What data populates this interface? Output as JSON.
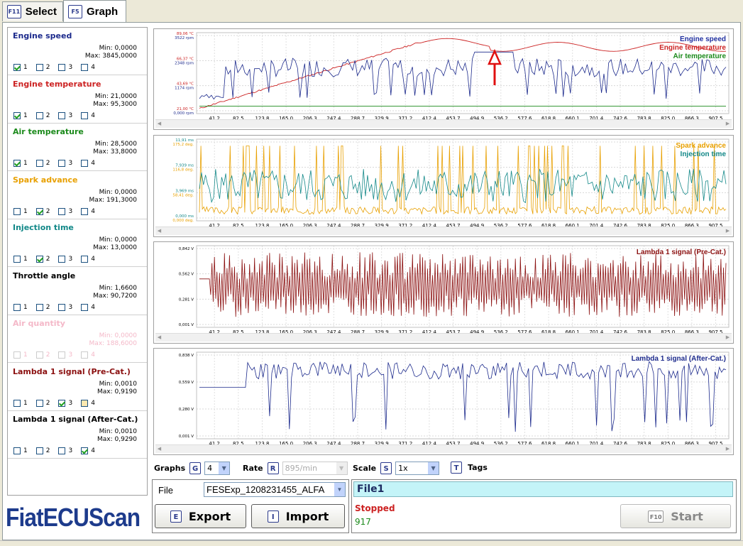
{
  "tabs": [
    {
      "key": "F11",
      "label": "Select",
      "active": false
    },
    {
      "key": "F5",
      "label": "Graph",
      "active": true
    }
  ],
  "signals": [
    {
      "name": "Engine speed",
      "min": "Min: 0,0000",
      "max": "Max: 3845,0000",
      "color": "#1c2a8c",
      "checked": [
        1
      ],
      "enabled": true
    },
    {
      "name": "Engine temperature",
      "min": "Min: 21,0000",
      "max": "Max: 95,3000",
      "color": "#cc2222",
      "checked": [
        1
      ],
      "enabled": true
    },
    {
      "name": "Air temperature",
      "min": "Min: 28,5000",
      "max": "Max: 33,8000",
      "color": "#1b8a1b",
      "checked": [
        1
      ],
      "enabled": true
    },
    {
      "name": "Spark advance",
      "min": "Min: 0,0000",
      "max": "Max: 191,3000",
      "color": "#e8a000",
      "checked": [
        2
      ],
      "enabled": true
    },
    {
      "name": "Injection time",
      "min": "Min: 0,0000",
      "max": "Max: 13,0000",
      "color": "#128888",
      "checked": [
        2
      ],
      "enabled": true
    },
    {
      "name": "Throttle angle",
      "min": "Min: 1,6600",
      "max": "Max: 90,7200",
      "color": "#000000",
      "checked": [],
      "enabled": true
    },
    {
      "name": "Air quantity",
      "min": "Min: 0,0000",
      "max": "Max: 188,6000",
      "color": "#f4b8c8",
      "checked": [],
      "enabled": false
    },
    {
      "name": "Lambda 1 signal (Pre-Cat.)",
      "min": "Min: 0,0010",
      "max": "Max: 0,9190",
      "color": "#8b1010",
      "checked": [
        3
      ],
      "enabled": true
    },
    {
      "name": "Lambda 1 signal (After-Cat.)",
      "min": "Min: 0,0010",
      "max": "Max: 0,9290",
      "color": "#000000",
      "checked": [
        4
      ],
      "enabled": true
    }
  ],
  "checkbox_labels": [
    "1",
    "2",
    "3",
    "4"
  ],
  "x_ticks": [
    "41,2",
    "82,5",
    "123,8",
    "165,0",
    "206,3",
    "247,4",
    "288,7",
    "329,9",
    "371,2",
    "412,4",
    "453,7",
    "494,9",
    "536,2",
    "577,6",
    "618,8",
    "660,1",
    "701,4",
    "742,6",
    "783,8",
    "825,0",
    "866,3",
    "907,5"
  ],
  "graphs": [
    {
      "legend": [
        {
          "name": "Engine speed",
          "color": "#2030a0"
        },
        {
          "name": "Engine temperature",
          "color": "#cc2222"
        },
        {
          "name": "Air temperature",
          "color": "#1b8a1b"
        }
      ],
      "y_labels": [
        {
          "a": "89,06 °C",
          "b": "3522 rpm"
        },
        {
          "a": "66,37 °C",
          "b": "2348 rpm"
        },
        {
          "a": "43,69 °C",
          "b": "1174 rpm"
        },
        {
          "a": "21,00 °C",
          "b": "0,000 rpm"
        }
      ]
    },
    {
      "legend": [
        {
          "name": "Spark advance",
          "color": "#e8a000"
        },
        {
          "name": "Injection time",
          "color": "#128888"
        }
      ],
      "y_labels": [
        {
          "a": "11,91 ms",
          "b": "175,2 deg."
        },
        {
          "a": "7,939 ms",
          "b": "116,8 deg."
        },
        {
          "a": "3,969 ms",
          "b": "58,41 deg."
        },
        {
          "a": "0,000 ms",
          "b": "0,000 deg."
        }
      ]
    },
    {
      "legend": [
        {
          "name": "Lambda 1 signal (Pre-Cat.)",
          "color": "#8b1010"
        }
      ],
      "y_labels": [
        {
          "a": "0,842 V",
          "b": ""
        },
        {
          "a": "0,562 V",
          "b": ""
        },
        {
          "a": "0,281 V",
          "b": ""
        },
        {
          "a": "0,001 V",
          "b": ""
        }
      ]
    },
    {
      "legend": [
        {
          "name": "Lambda 1 signal (After-Cat.)",
          "color": "#1c2a8c"
        }
      ],
      "y_labels": [
        {
          "a": "0,838 V",
          "b": ""
        },
        {
          "a": "0,559 V",
          "b": ""
        },
        {
          "a": "0,280 V",
          "b": ""
        },
        {
          "a": "0,001 V",
          "b": ""
        }
      ]
    }
  ],
  "controls": {
    "graphs_label": "Graphs",
    "graphs_key": "G",
    "graphs_value": "4",
    "rate_label": "Rate",
    "rate_key": "R",
    "rate_value": "895/min",
    "scale_label": "Scale",
    "scale_key": "S",
    "scale_value": "1x",
    "tags_key": "T",
    "tags_label": "Tags"
  },
  "file": {
    "label": "File",
    "value": "FESExp_1208231455_ALFA",
    "name": "File1",
    "status": "Stopped",
    "status_color": "#cc2222",
    "count": "917",
    "count_color": "#1b8a1b"
  },
  "buttons": {
    "export_key": "E",
    "export_label": "Export",
    "import_key": "I",
    "import_label": "Import",
    "start_key": "F10",
    "start_label": "Start"
  },
  "logo": "FiatECUScan"
}
